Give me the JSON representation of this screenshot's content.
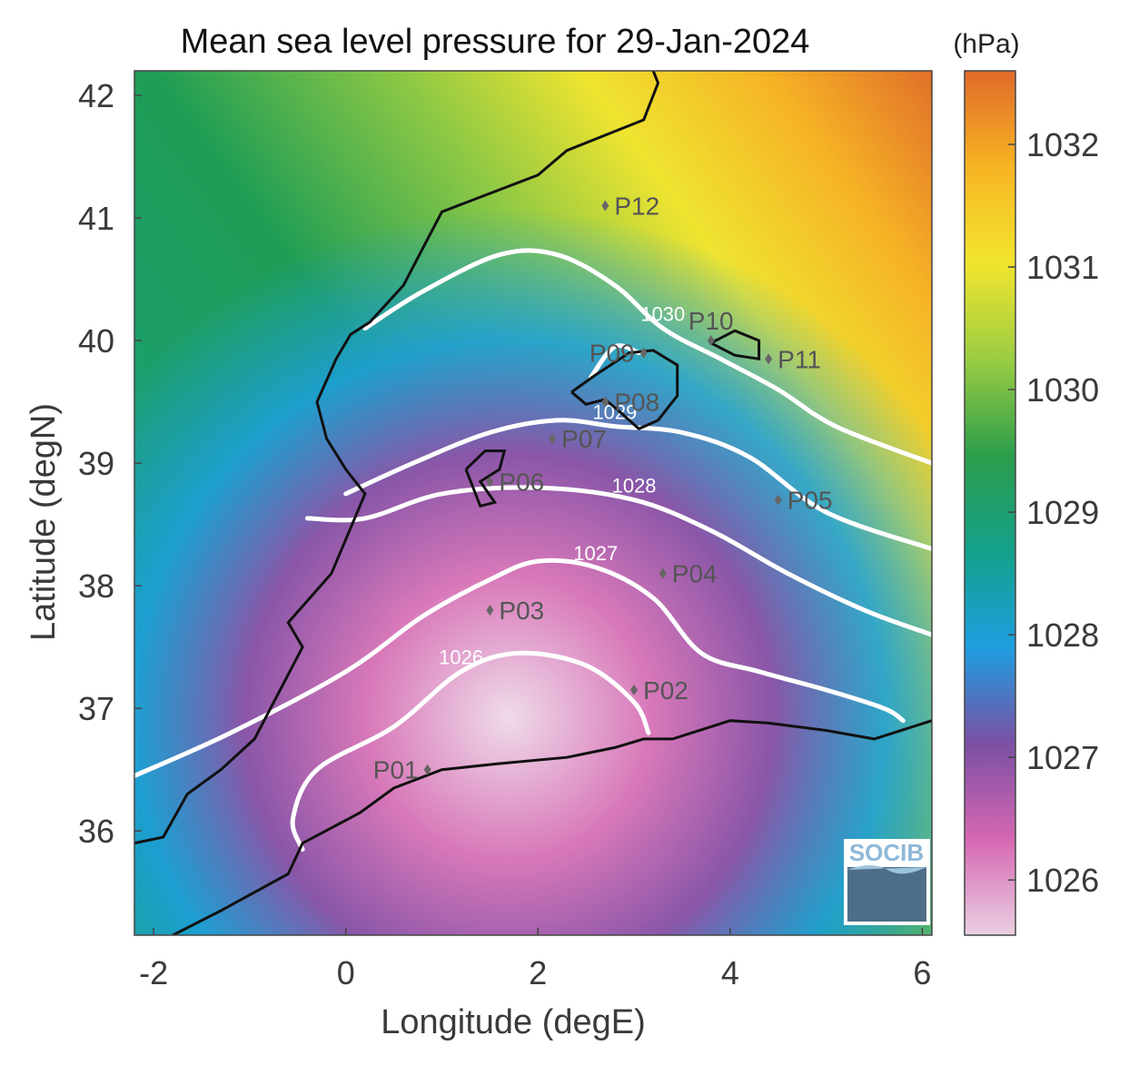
{
  "figure": {
    "title": "Mean sea level pressure for 29-Jan-2024",
    "logo_text": "SOCIB"
  },
  "chart_data": {
    "type": "heatmap",
    "title": "Mean sea level pressure for 29-Jan-2024",
    "xlabel": "Longitude (degE)",
    "ylabel": "Latitude (degN)",
    "xlim": [
      -2.2,
      6.1
    ],
    "ylim": [
      35.15,
      42.2
    ],
    "xticks": [
      -2,
      0,
      2,
      4,
      6
    ],
    "yticks": [
      36,
      37,
      38,
      39,
      40,
      41,
      42
    ],
    "colorbar": {
      "unit": "(hPa)",
      "range": [
        1025.55,
        1032.6
      ],
      "ticks": [
        1026,
        1027,
        1028,
        1029,
        1030,
        1031,
        1032
      ],
      "colors": [
        "#ead0e2",
        "#d667b2",
        "#7b4fa4",
        "#1e9ee0",
        "#14a08a",
        "#2c9e4b",
        "#9bcd42",
        "#f2e52e",
        "#f7b423",
        "#e06a2a"
      ]
    },
    "contours": [
      {
        "level": 1026,
        "label": "1026",
        "points": [
          [
            -0.45,
            35.85
          ],
          [
            -0.55,
            36.1
          ],
          [
            -0.3,
            36.5
          ],
          [
            0.5,
            36.85
          ],
          [
            1.2,
            37.3
          ],
          [
            1.8,
            37.45
          ],
          [
            2.5,
            37.35
          ],
          [
            3.0,
            37.05
          ],
          [
            3.15,
            36.8
          ]
        ]
      },
      {
        "level": 1027,
        "label": "1027",
        "points": [
          [
            -2.2,
            36.45
          ],
          [
            -1.2,
            36.8
          ],
          [
            0.0,
            37.3
          ],
          [
            0.8,
            37.75
          ],
          [
            1.5,
            38.05
          ],
          [
            2.0,
            38.2
          ],
          [
            2.6,
            38.15
          ],
          [
            3.2,
            37.9
          ],
          [
            3.7,
            37.45
          ],
          [
            4.3,
            37.3
          ],
          [
            5.0,
            37.15
          ],
          [
            5.6,
            37.0
          ],
          [
            5.8,
            36.9
          ]
        ]
      },
      {
        "level": 1028,
        "label": "1028",
        "points": [
          [
            -0.4,
            38.55
          ],
          [
            0.2,
            38.55
          ],
          [
            1.0,
            38.75
          ],
          [
            2.0,
            38.8
          ],
          [
            3.0,
            38.7
          ],
          [
            3.8,
            38.45
          ],
          [
            4.6,
            38.1
          ],
          [
            5.4,
            37.8
          ],
          [
            6.1,
            37.6
          ]
        ]
      },
      {
        "level": 1029,
        "label": "1029",
        "points": [
          [
            0.0,
            38.75
          ],
          [
            0.7,
            39.0
          ],
          [
            1.5,
            39.25
          ],
          [
            2.2,
            39.35
          ],
          [
            2.8,
            39.3
          ],
          [
            3.5,
            39.25
          ],
          [
            4.2,
            39.05
          ],
          [
            5.0,
            38.6
          ],
          [
            6.1,
            38.3
          ]
        ]
      },
      {
        "level": 1030,
        "label": "1030",
        "points": [
          [
            0.2,
            40.1
          ],
          [
            0.8,
            40.4
          ],
          [
            1.6,
            40.7
          ],
          [
            2.2,
            40.7
          ],
          [
            2.8,
            40.45
          ],
          [
            3.3,
            40.1
          ],
          [
            3.9,
            39.85
          ],
          [
            4.5,
            39.6
          ],
          [
            5.1,
            39.3
          ],
          [
            6.1,
            39.0
          ]
        ]
      },
      {
        "level": 1030,
        "label": "",
        "points": [
          [
            2.55,
            39.7
          ],
          [
            2.8,
            39.95
          ],
          [
            3.05,
            39.9
          ]
        ]
      }
    ],
    "points": [
      {
        "name": "P01",
        "lon": 0.85,
        "lat": 36.5,
        "label_side": "left"
      },
      {
        "name": "P02",
        "lon": 3.0,
        "lat": 37.15,
        "label_side": "right"
      },
      {
        "name": "P03",
        "lon": 1.5,
        "lat": 37.8,
        "label_side": "right"
      },
      {
        "name": "P04",
        "lon": 3.3,
        "lat": 38.1,
        "label_side": "right"
      },
      {
        "name": "P05",
        "lon": 4.5,
        "lat": 38.7,
        "label_side": "right"
      },
      {
        "name": "P06",
        "lon": 1.5,
        "lat": 38.85,
        "label_side": "right"
      },
      {
        "name": "P07",
        "lon": 2.15,
        "lat": 39.2,
        "label_side": "right"
      },
      {
        "name": "P08",
        "lon": 2.7,
        "lat": 39.5,
        "label_side": "right"
      },
      {
        "name": "P09",
        "lon": 3.1,
        "lat": 39.9,
        "label_side": "left"
      },
      {
        "name": "P10",
        "lon": 3.8,
        "lat": 40.0,
        "label_side": "above"
      },
      {
        "name": "P11",
        "lon": 4.4,
        "lat": 39.85,
        "label_side": "right"
      },
      {
        "name": "P12",
        "lon": 2.7,
        "lat": 41.1,
        "label_side": "right"
      }
    ]
  }
}
